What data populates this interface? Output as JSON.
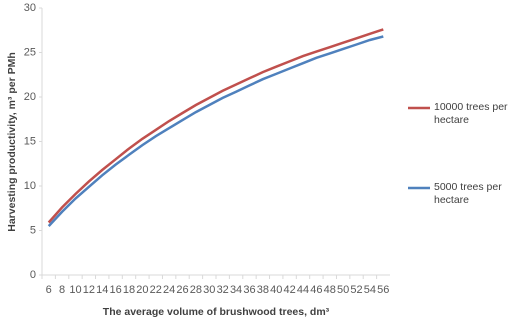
{
  "chart_data": {
    "type": "line",
    "y_label": "Harvesting productivity, m³ per PMh",
    "x_label": "The average volume of brushwood trees, dm³",
    "categories": [
      "6",
      "8",
      "10",
      "12",
      "14",
      "16",
      "18",
      "20",
      "22",
      "24",
      "26",
      "28",
      "30",
      "32",
      "34",
      "36",
      "38",
      "40",
      "42",
      "44",
      "46",
      "48",
      "50",
      "52",
      "54",
      "56"
    ],
    "series": [
      {
        "name": "10000 trees per hectare",
        "color": "#c0504d",
        "values": [
          5.9,
          7.6,
          9.1,
          10.5,
          11.8,
          13.0,
          14.2,
          15.3,
          16.3,
          17.3,
          18.2,
          19.1,
          19.9,
          20.7,
          21.4,
          22.1,
          22.8,
          23.4,
          24.0,
          24.6,
          25.1,
          25.6,
          26.1,
          26.6,
          27.1,
          27.6
        ]
      },
      {
        "name": "5000 trees per hectare",
        "color": "#4f81bd",
        "values": [
          5.5,
          7.1,
          8.6,
          9.9,
          11.2,
          12.4,
          13.5,
          14.6,
          15.6,
          16.5,
          17.4,
          18.3,
          19.1,
          19.9,
          20.6,
          21.3,
          22.0,
          22.6,
          23.2,
          23.8,
          24.4,
          24.9,
          25.4,
          25.9,
          26.4,
          26.8
        ]
      }
    ],
    "ylim": [
      0,
      30
    ],
    "yticks": [
      0,
      5,
      10,
      15,
      20,
      25,
      30
    ],
    "grid": false
  }
}
